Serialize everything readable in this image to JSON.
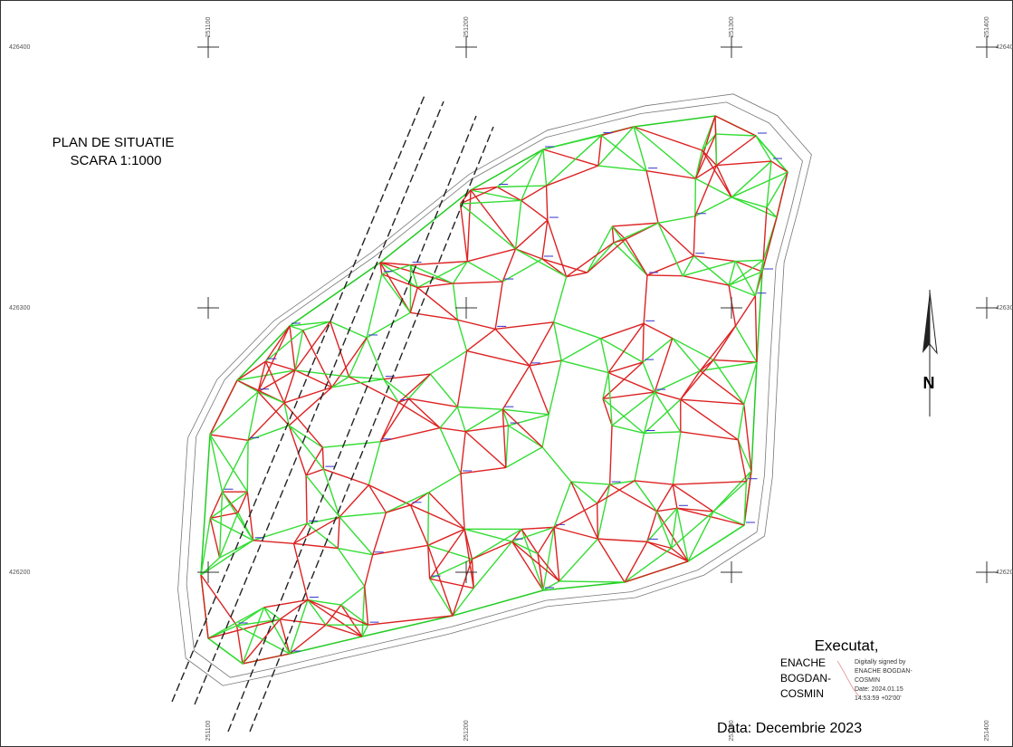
{
  "title": "PLAN DE SITUATIE",
  "scale": "SCARA 1:1000",
  "grid": {
    "eastings": [
      "251100",
      "251200",
      "251300",
      "251400"
    ],
    "northings": [
      "426400",
      "426300",
      "426200"
    ]
  },
  "north": "N",
  "signature": {
    "heading": "Executat,",
    "name": [
      "ENACHE",
      "BOGDAN-",
      "COSMIN"
    ],
    "digital": [
      "Digitally signed by",
      "ENACHE BOGDAN-",
      "COSMIN",
      "Date: 2024.01.15",
      "14:53:59 +02'00'"
    ]
  },
  "date": "Data: Decembrie 2023"
}
